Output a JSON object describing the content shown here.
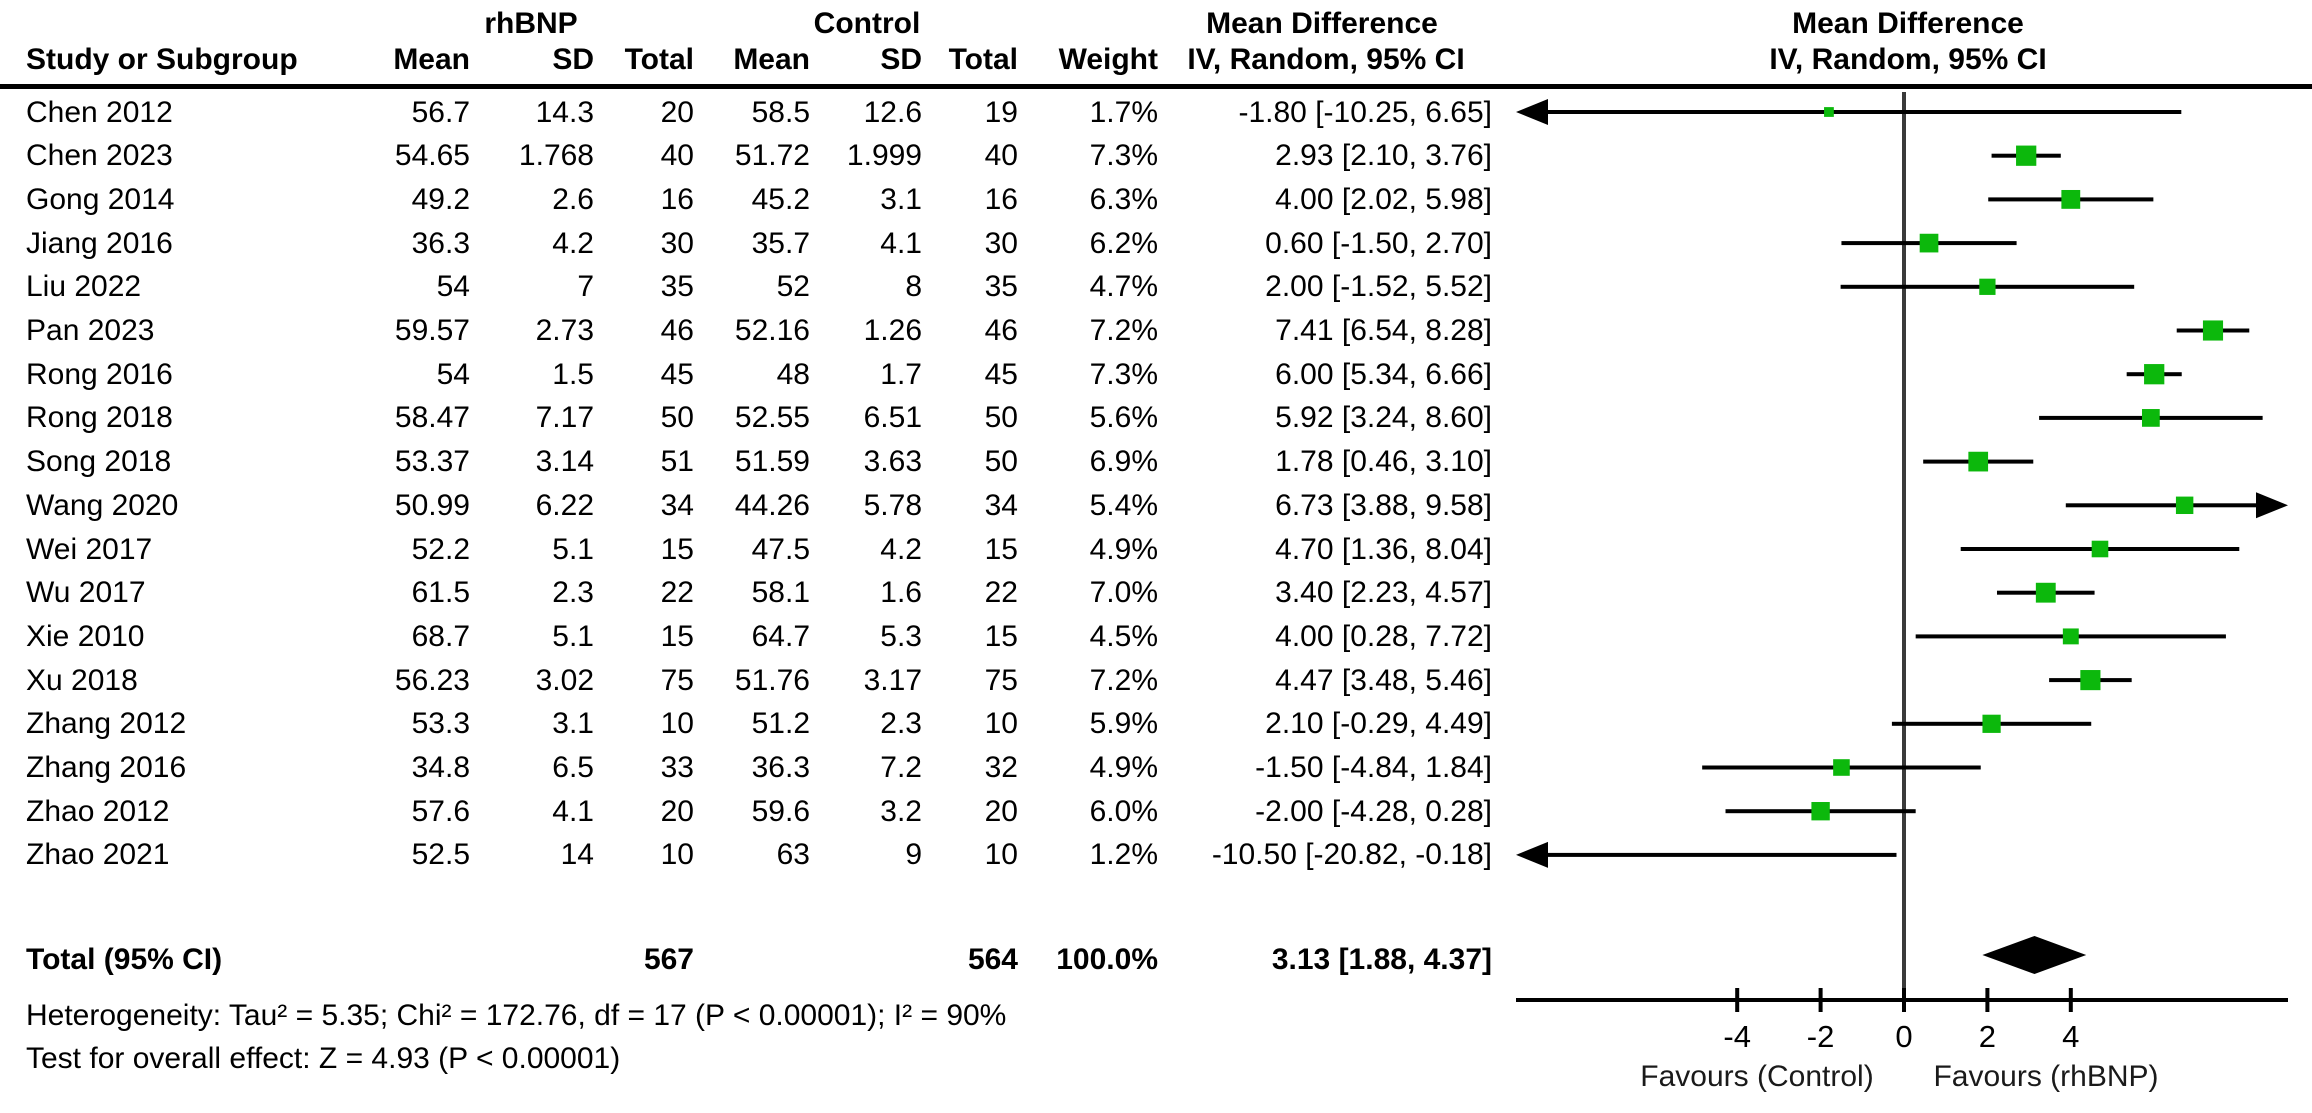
{
  "header": {
    "group_experimental": "rhBNP",
    "group_control": "Control",
    "col_study": "Study or Subgroup",
    "col_mean": "Mean",
    "col_sd": "SD",
    "col_total": "Total",
    "col_weight": "Weight",
    "effect_title": "Mean Difference",
    "effect_method": "IV, Random, 95% CI"
  },
  "footer": {
    "heterogeneity": "Heterogeneity: Tau² = 5.35; Chi² = 172.76, df = 17 (P < 0.00001); I² = 90%",
    "overall_effect": "Test for overall effect: Z = 4.93 (P < 0.00001)"
  },
  "colors": {
    "square_green": "#0cb80c",
    "line_black": "#000000"
  },
  "chart_data": {
    "type": "forest",
    "effect_label": "Mean Difference",
    "method_label": "IV, Random, 95% CI",
    "x_ticks": [
      -4,
      -2,
      0,
      2,
      4
    ],
    "x_range": [
      -9.3,
      9.2
    ],
    "favours_left": "Favours (Control)",
    "favours_right": "Favours (rhBNP)",
    "studies": [
      {
        "name": "Chen 2012",
        "mean_e": "56.7",
        "sd_e": "14.3",
        "n_e": "20",
        "mean_c": "58.5",
        "sd_c": "12.6",
        "n_c": "19",
        "weight": "1.7%",
        "ci_text": "-1.80 [-10.25, 6.65]",
        "md": -1.8,
        "lo": -10.25,
        "hi": 6.65,
        "w": 1.7
      },
      {
        "name": "Chen 2023",
        "mean_e": "54.65",
        "sd_e": "1.768",
        "n_e": "40",
        "mean_c": "51.72",
        "sd_c": "1.999",
        "n_c": "40",
        "weight": "7.3%",
        "ci_text": "2.93 [2.10, 3.76]",
        "md": 2.93,
        "lo": 2.1,
        "hi": 3.76,
        "w": 7.3
      },
      {
        "name": "Gong 2014",
        "mean_e": "49.2",
        "sd_e": "2.6",
        "n_e": "16",
        "mean_c": "45.2",
        "sd_c": "3.1",
        "n_c": "16",
        "weight": "6.3%",
        "ci_text": "4.00 [2.02, 5.98]",
        "md": 4.0,
        "lo": 2.02,
        "hi": 5.98,
        "w": 6.3
      },
      {
        "name": "Jiang 2016",
        "mean_e": "36.3",
        "sd_e": "4.2",
        "n_e": "30",
        "mean_c": "35.7",
        "sd_c": "4.1",
        "n_c": "30",
        "weight": "6.2%",
        "ci_text": "0.60 [-1.50, 2.70]",
        "md": 0.6,
        "lo": -1.5,
        "hi": 2.7,
        "w": 6.2
      },
      {
        "name": "Liu 2022",
        "mean_e": "54",
        "sd_e": "7",
        "n_e": "35",
        "mean_c": "52",
        "sd_c": "8",
        "n_c": "35",
        "weight": "4.7%",
        "ci_text": "2.00 [-1.52, 5.52]",
        "md": 2.0,
        "lo": -1.52,
        "hi": 5.52,
        "w": 4.7
      },
      {
        "name": "Pan 2023",
        "mean_e": "59.57",
        "sd_e": "2.73",
        "n_e": "46",
        "mean_c": "52.16",
        "sd_c": "1.26",
        "n_c": "46",
        "weight": "7.2%",
        "ci_text": "7.41 [6.54, 8.28]",
        "md": 7.41,
        "lo": 6.54,
        "hi": 8.28,
        "w": 7.2
      },
      {
        "name": "Rong 2016",
        "mean_e": "54",
        "sd_e": "1.5",
        "n_e": "45",
        "mean_c": "48",
        "sd_c": "1.7",
        "n_c": "45",
        "weight": "7.3%",
        "ci_text": "6.00 [5.34, 6.66]",
        "md": 6.0,
        "lo": 5.34,
        "hi": 6.66,
        "w": 7.3
      },
      {
        "name": "Rong 2018",
        "mean_e": "58.47",
        "sd_e": "7.17",
        "n_e": "50",
        "mean_c": "52.55",
        "sd_c": "6.51",
        "n_c": "50",
        "weight": "5.6%",
        "ci_text": "5.92 [3.24, 8.60]",
        "md": 5.92,
        "lo": 3.24,
        "hi": 8.6,
        "w": 5.6
      },
      {
        "name": "Song 2018",
        "mean_e": "53.37",
        "sd_e": "3.14",
        "n_e": "51",
        "mean_c": "51.59",
        "sd_c": "3.63",
        "n_c": "50",
        "weight": "6.9%",
        "ci_text": "1.78 [0.46, 3.10]",
        "md": 1.78,
        "lo": 0.46,
        "hi": 3.1,
        "w": 6.9
      },
      {
        "name": "Wang 2020",
        "mean_e": "50.99",
        "sd_e": "6.22",
        "n_e": "34",
        "mean_c": "44.26",
        "sd_c": "5.78",
        "n_c": "34",
        "weight": "5.4%",
        "ci_text": "6.73 [3.88, 9.58]",
        "md": 6.73,
        "lo": 3.88,
        "hi": 9.58,
        "w": 5.4
      },
      {
        "name": "Wei 2017",
        "mean_e": "52.2",
        "sd_e": "5.1",
        "n_e": "15",
        "mean_c": "47.5",
        "sd_c": "4.2",
        "n_c": "15",
        "weight": "4.9%",
        "ci_text": "4.70 [1.36, 8.04]",
        "md": 4.7,
        "lo": 1.36,
        "hi": 8.04,
        "w": 4.9
      },
      {
        "name": "Wu 2017",
        "mean_e": "61.5",
        "sd_e": "2.3",
        "n_e": "22",
        "mean_c": "58.1",
        "sd_c": "1.6",
        "n_c": "22",
        "weight": "7.0%",
        "ci_text": "3.40 [2.23, 4.57]",
        "md": 3.4,
        "lo": 2.23,
        "hi": 4.57,
        "w": 7.0
      },
      {
        "name": "Xie 2010",
        "mean_e": "68.7",
        "sd_e": "5.1",
        "n_e": "15",
        "mean_c": "64.7",
        "sd_c": "5.3",
        "n_c": "15",
        "weight": "4.5%",
        "ci_text": "4.00 [0.28, 7.72]",
        "md": 4.0,
        "lo": 0.28,
        "hi": 7.72,
        "w": 4.5
      },
      {
        "name": "Xu 2018",
        "mean_e": "56.23",
        "sd_e": "3.02",
        "n_e": "75",
        "mean_c": "51.76",
        "sd_c": "3.17",
        "n_c": "75",
        "weight": "7.2%",
        "ci_text": "4.47 [3.48, 5.46]",
        "md": 4.47,
        "lo": 3.48,
        "hi": 5.46,
        "w": 7.2
      },
      {
        "name": "Zhang 2012",
        "mean_e": "53.3",
        "sd_e": "3.1",
        "n_e": "10",
        "mean_c": "51.2",
        "sd_c": "2.3",
        "n_c": "10",
        "weight": "5.9%",
        "ci_text": "2.10 [-0.29, 4.49]",
        "md": 2.1,
        "lo": -0.29,
        "hi": 4.49,
        "w": 5.9
      },
      {
        "name": "Zhang 2016",
        "mean_e": "34.8",
        "sd_e": "6.5",
        "n_e": "33",
        "mean_c": "36.3",
        "sd_c": "7.2",
        "n_c": "32",
        "weight": "4.9%",
        "ci_text": "-1.50 [-4.84, 1.84]",
        "md": -1.5,
        "lo": -4.84,
        "hi": 1.84,
        "w": 4.9
      },
      {
        "name": "Zhao 2012",
        "mean_e": "57.6",
        "sd_e": "4.1",
        "n_e": "20",
        "mean_c": "59.6",
        "sd_c": "3.2",
        "n_c": "20",
        "weight": "6.0%",
        "ci_text": "-2.00 [-4.28, 0.28]",
        "md": -2.0,
        "lo": -4.28,
        "hi": 0.28,
        "w": 6.0
      },
      {
        "name": "Zhao 2021",
        "mean_e": "52.5",
        "sd_e": "14",
        "n_e": "10",
        "mean_c": "63",
        "sd_c": "9",
        "n_c": "10",
        "weight": "1.2%",
        "ci_text": "-10.50 [-20.82, -0.18]",
        "md": -10.5,
        "lo": -20.82,
        "hi": -0.18,
        "w": 1.2
      }
    ],
    "total": {
      "label": "Total (95% CI)",
      "n_e": "567",
      "n_c": "564",
      "weight": "100.0%",
      "ci_text": "3.13 [1.88, 4.37]",
      "md": 3.13,
      "lo": 1.88,
      "hi": 4.37
    }
  }
}
